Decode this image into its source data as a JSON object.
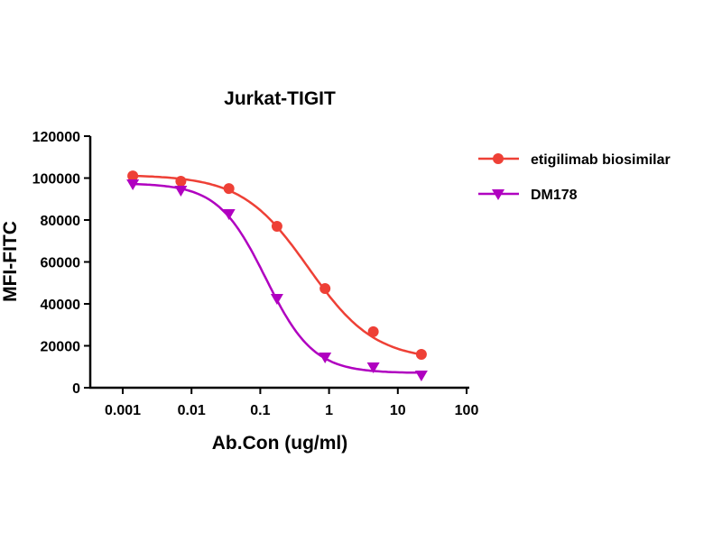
{
  "chart_data": {
    "type": "line",
    "title": "Jurkat-TIGIT",
    "xlabel": "Ab.Con (ug/ml)",
    "ylabel": "MFI-FITC",
    "xscale": "log",
    "xlim": [
      0.001,
      100
    ],
    "ylim": [
      0,
      120000
    ],
    "xticks": [
      0.001,
      0.01,
      0.1,
      1,
      10,
      100
    ],
    "xtick_labels": [
      "0.001",
      "0.01",
      "0.1",
      "1",
      "10",
      "100"
    ],
    "yticks": [
      0,
      20000,
      40000,
      60000,
      80000,
      100000,
      120000
    ],
    "ytick_labels": [
      "0",
      "20000",
      "40000",
      "60000",
      "80000",
      "100000",
      "120000"
    ],
    "grid": false,
    "legend_position": "right",
    "series": [
      {
        "name": "etigilimab biosimilar",
        "color": "#EE4036",
        "marker": "circle",
        "x": [
          0.0014,
          0.007,
          0.035,
          0.175,
          0.875,
          4.4,
          22
        ],
        "y": [
          101000,
          98500,
          95000,
          77000,
          47300,
          26700,
          15900
        ],
        "fit": {
          "top": 101500,
          "bottom": 13000,
          "ic50": 0.5,
          "hill": 0.9
        }
      },
      {
        "name": "DM178",
        "color": "#B000C0",
        "marker": "triangle-down",
        "x": [
          0.0014,
          0.007,
          0.035,
          0.175,
          0.875,
          4.4,
          22
        ],
        "y": [
          97200,
          94200,
          83000,
          42600,
          14600,
          9900,
          6000
        ],
        "fit": {
          "top": 97500,
          "bottom": 7000,
          "ic50": 0.12,
          "hill": 1.25
        }
      }
    ]
  }
}
